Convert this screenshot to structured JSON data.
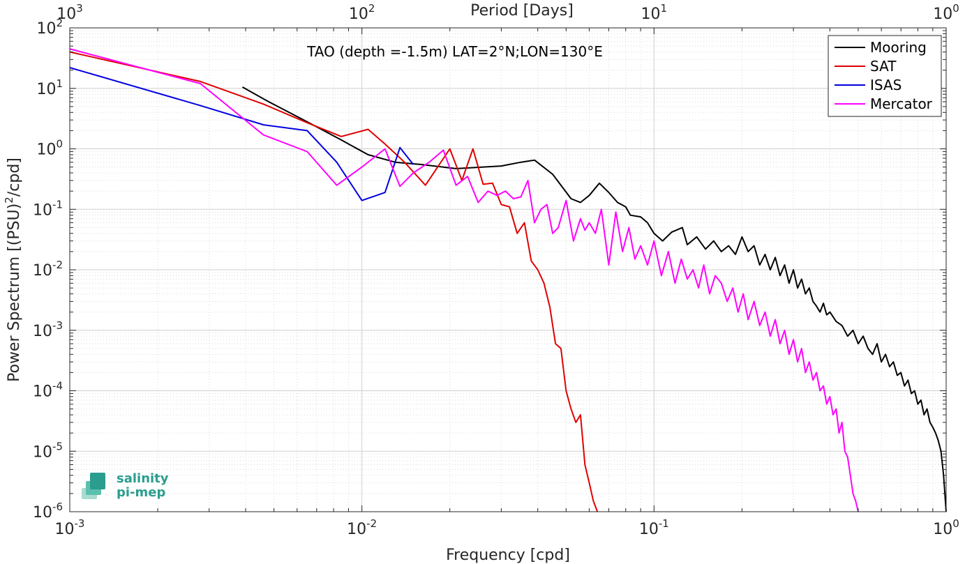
{
  "chart_data": {
    "type": "line",
    "title": "",
    "annotation": "TAO (depth =-1.5m) LAT=2°N;LON=130°E",
    "xlabel": "Frequency [cpd]",
    "xlabel_top": "Period [Days]",
    "ylabel": "Power Spectrum [(PSU)²/cpd]",
    "ylabel_parts": {
      "pre": "Power Spectrum [(PSU)",
      "sup": "2",
      "post": "/cpd]"
    },
    "xscale": "log",
    "yscale": "log",
    "xlim": [
      0.001,
      1
    ],
    "ylim": [
      1e-06,
      100
    ],
    "grid": true,
    "legend_position": "top-right",
    "x_ticks": [
      {
        "value": 0.001,
        "base": "10",
        "exp": "-3"
      },
      {
        "value": 0.01,
        "base": "10",
        "exp": "-2"
      },
      {
        "value": 0.1,
        "base": "10",
        "exp": "-1"
      },
      {
        "value": 1,
        "base": "10",
        "exp": "0"
      }
    ],
    "x_ticks_top": [
      {
        "value": 0.001,
        "base": "10",
        "exp": "3"
      },
      {
        "value": 0.01,
        "base": "10",
        "exp": "2"
      },
      {
        "value": 0.1,
        "base": "10",
        "exp": "1"
      },
      {
        "value": 1,
        "base": "10",
        "exp": "0"
      }
    ],
    "y_ticks": [
      {
        "value": 1e-06,
        "base": "10",
        "exp": "-6"
      },
      {
        "value": 1e-05,
        "base": "10",
        "exp": "-5"
      },
      {
        "value": 0.0001,
        "base": "10",
        "exp": "-4"
      },
      {
        "value": 0.001,
        "base": "10",
        "exp": "-3"
      },
      {
        "value": 0.01,
        "base": "10",
        "exp": "-2"
      },
      {
        "value": 0.1,
        "base": "10",
        "exp": "-1"
      },
      {
        "value": 1,
        "base": "10",
        "exp": "0"
      },
      {
        "value": 10,
        "base": "10",
        "exp": "1"
      },
      {
        "value": 100,
        "base": "10",
        "exp": "2"
      }
    ],
    "series": [
      {
        "name": "Mooring",
        "color": "#000000",
        "x": [
          0.0039,
          0.0048,
          0.0065,
          0.0085,
          0.0105,
          0.013,
          0.016,
          0.021,
          0.026,
          0.03,
          0.035,
          0.039,
          0.045,
          0.052,
          0.056,
          0.06,
          0.065,
          0.07,
          0.075,
          0.08,
          0.083,
          0.09,
          0.095,
          0.1,
          0.107,
          0.115,
          0.125,
          0.13,
          0.14,
          0.15,
          0.16,
          0.17,
          0.18,
          0.19,
          0.2,
          0.21,
          0.22,
          0.23,
          0.24,
          0.25,
          0.26,
          0.27,
          0.28,
          0.29,
          0.3,
          0.31,
          0.32,
          0.33,
          0.34,
          0.35,
          0.36,
          0.37,
          0.38,
          0.39,
          0.4,
          0.42,
          0.44,
          0.46,
          0.48,
          0.5,
          0.52,
          0.54,
          0.56,
          0.58,
          0.6,
          0.62,
          0.64,
          0.66,
          0.68,
          0.7,
          0.72,
          0.74,
          0.76,
          0.78,
          0.8,
          0.82,
          0.84,
          0.86,
          0.88,
          0.9,
          0.92,
          0.94,
          0.96,
          0.98,
          1.0
        ],
        "values": [
          10.5,
          6.0,
          2.8,
          1.4,
          0.8,
          0.6,
          0.55,
          0.47,
          0.5,
          0.52,
          0.6,
          0.65,
          0.38,
          0.15,
          0.13,
          0.17,
          0.27,
          0.19,
          0.13,
          0.11,
          0.08,
          0.075,
          0.06,
          0.04,
          0.03,
          0.042,
          0.05,
          0.026,
          0.035,
          0.022,
          0.03,
          0.02,
          0.025,
          0.018,
          0.035,
          0.02,
          0.025,
          0.012,
          0.018,
          0.01,
          0.016,
          0.008,
          0.012,
          0.006,
          0.01,
          0.005,
          0.007,
          0.004,
          0.005,
          0.003,
          0.0025,
          0.002,
          0.0028,
          0.0018,
          0.002,
          0.0014,
          0.0012,
          0.0008,
          0.001,
          0.0006,
          0.0008,
          0.0005,
          0.0004,
          0.0006,
          0.0003,
          0.0004,
          0.00025,
          0.0003,
          0.00018,
          0.0002,
          0.00012,
          0.00015,
          9e-05,
          0.0001,
          6e-05,
          7e-05,
          4e-05,
          5e-05,
          3e-05,
          2.5e-05,
          2e-05,
          1.5e-05,
          1e-05,
          4e-06,
          1e-06
        ]
      },
      {
        "name": "SAT",
        "color": "#e00000",
        "x": [
          0.001,
          0.0028,
          0.0046,
          0.0065,
          0.0085,
          0.0105,
          0.012,
          0.014,
          0.0165,
          0.02,
          0.022,
          0.024,
          0.026,
          0.028,
          0.03,
          0.032,
          0.034,
          0.036,
          0.038,
          0.04,
          0.042,
          0.044,
          0.046,
          0.048,
          0.05,
          0.052,
          0.054,
          0.056,
          0.058,
          0.06,
          0.062,
          0.064
        ],
        "values": [
          40,
          13,
          5.5,
          2.7,
          1.6,
          2.1,
          1.2,
          0.6,
          0.25,
          1.0,
          0.3,
          1.0,
          0.26,
          0.27,
          0.12,
          0.11,
          0.04,
          0.06,
          0.014,
          0.01,
          0.006,
          0.0024,
          0.0006,
          0.0005,
          0.0001,
          5e-05,
          3e-05,
          4e-05,
          6e-06,
          3e-06,
          1.5e-06,
          1e-06
        ]
      },
      {
        "name": "ISAS",
        "color": "#0000e0",
        "x": [
          0.001,
          0.0028,
          0.0046,
          0.0065,
          0.0082,
          0.01,
          0.012,
          0.0135,
          0.015
        ],
        "values": [
          22,
          5.2,
          2.5,
          2.0,
          0.6,
          0.14,
          0.19,
          1.05,
          0.55
        ]
      },
      {
        "name": "Mercator",
        "color": "#ff00ff",
        "x": [
          0.001,
          0.0028,
          0.0046,
          0.0065,
          0.0082,
          0.01,
          0.012,
          0.0135,
          0.015,
          0.017,
          0.019,
          0.021,
          0.023,
          0.025,
          0.027,
          0.029,
          0.031,
          0.033,
          0.035,
          0.037,
          0.039,
          0.041,
          0.043,
          0.045,
          0.047,
          0.05,
          0.053,
          0.056,
          0.058,
          0.06,
          0.063,
          0.066,
          0.07,
          0.074,
          0.078,
          0.082,
          0.086,
          0.09,
          0.095,
          0.1,
          0.106,
          0.112,
          0.118,
          0.124,
          0.13,
          0.136,
          0.142,
          0.148,
          0.155,
          0.162,
          0.17,
          0.178,
          0.186,
          0.194,
          0.202,
          0.21,
          0.22,
          0.23,
          0.24,
          0.25,
          0.26,
          0.27,
          0.28,
          0.29,
          0.3,
          0.31,
          0.32,
          0.33,
          0.34,
          0.35,
          0.36,
          0.37,
          0.38,
          0.39,
          0.4,
          0.41,
          0.42,
          0.43,
          0.44,
          0.45,
          0.46,
          0.47,
          0.48,
          0.49,
          0.5
        ],
        "values": [
          45,
          12,
          1.7,
          0.9,
          0.25,
          0.5,
          1.0,
          0.24,
          0.4,
          0.6,
          0.95,
          0.25,
          0.35,
          0.13,
          0.2,
          0.17,
          0.2,
          0.15,
          0.16,
          0.3,
          0.06,
          0.1,
          0.12,
          0.04,
          0.05,
          0.14,
          0.03,
          0.07,
          0.045,
          0.06,
          0.04,
          0.1,
          0.012,
          0.09,
          0.02,
          0.05,
          0.015,
          0.025,
          0.012,
          0.03,
          0.008,
          0.02,
          0.006,
          0.015,
          0.007,
          0.01,
          0.005,
          0.012,
          0.004,
          0.008,
          0.006,
          0.003,
          0.005,
          0.002,
          0.004,
          0.0015,
          0.003,
          0.0012,
          0.002,
          0.0008,
          0.0015,
          0.0006,
          0.001,
          0.0004,
          0.0007,
          0.0003,
          0.0005,
          0.0002,
          0.0003,
          0.00015,
          0.0002,
          0.0001,
          0.00012,
          6e-05,
          8e-05,
          4e-05,
          5e-05,
          2e-05,
          3e-05,
          1e-05,
          8e-06,
          4e-06,
          2e-06,
          1.5e-06,
          1e-06
        ]
      }
    ]
  },
  "logo": {
    "line1": "salinity",
    "line2": "pi-mep",
    "icon": "wave-layers-icon",
    "color": "#2a9d8f"
  }
}
